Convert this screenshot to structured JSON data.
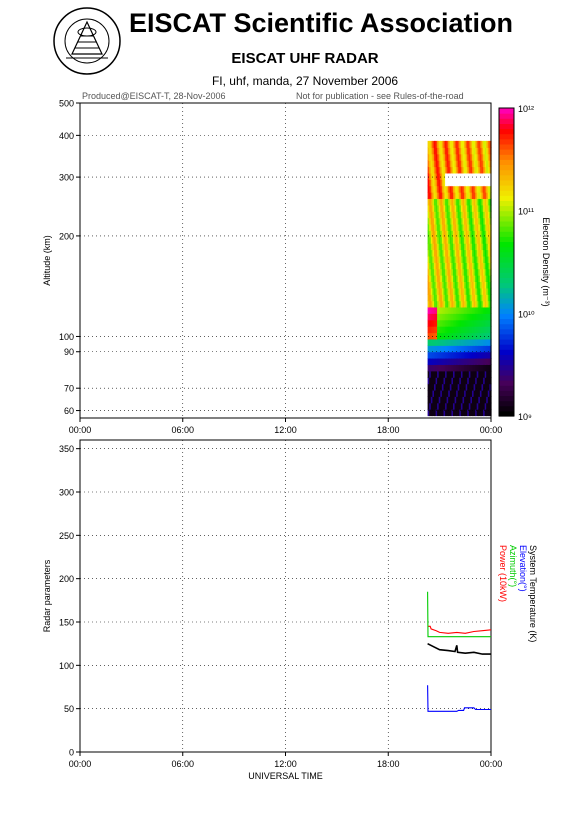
{
  "header": {
    "title": "EISCAT Scientific Association",
    "subtitle": "EISCAT UHF RADAR",
    "experiment_line": "FI, uhf, manda, 27 November 2006",
    "produced_note": "Produced@EISCAT-T, 28-Nov-2006",
    "publication_note": "Not for publication - see Rules-of-the-road"
  },
  "logo": {
    "text": "EISCAT SCIENTIFIC ASSOCIATION"
  },
  "colors": {
    "power": "#ff0000",
    "azimuth": "#00cc00",
    "elevation": "#0000ff",
    "system_temperature": "#000000"
  },
  "chart_data": [
    {
      "type": "heatmap",
      "ylabel": "Altitude (km)",
      "y_scale": "log",
      "ylim": [
        57,
        500
      ],
      "y_ticks": [
        "60",
        "70",
        "90",
        "100",
        "200",
        "300",
        "400",
        "500"
      ],
      "x_ticks": [
        "00:00",
        "06:00",
        "12:00",
        "18:00",
        "00:00"
      ],
      "grid": true,
      "colorbar": {
        "label": "Electron Density (m⁻³)",
        "scale": "log",
        "range": [
          1000000000.0,
          1000000000000.0
        ],
        "tick_labels": [
          "10¹²",
          "10¹¹",
          "10¹⁰",
          "10⁹"
        ]
      },
      "data_span_hours": [
        20.3,
        24.0
      ]
    },
    {
      "type": "line",
      "ylabel": "Radar parameters",
      "xlabel": "UNIVERSAL TIME",
      "ylim": [
        0,
        360
      ],
      "y_ticks": [
        "0",
        "50",
        "100",
        "150",
        "200",
        "250",
        "300",
        "350"
      ],
      "x_ticks": [
        "00:00",
        "06:00",
        "12:00",
        "18:00",
        "00:00"
      ],
      "grid": true,
      "legend": [
        "System Temperature (K)",
        "Elevation(°)",
        "Azimuth(°)",
        "Power (10kW)"
      ],
      "series": [
        {
          "name": "Power (10kW)",
          "color": "#ff0000",
          "points": [
            [
              20.3,
              145
            ],
            [
              20.45,
              145
            ],
            [
              20.5,
              142
            ],
            [
              20.8,
              140
            ],
            [
              21.0,
              138
            ],
            [
              21.5,
              137
            ],
            [
              22.0,
              138
            ],
            [
              22.5,
              137
            ],
            [
              23.0,
              139
            ],
            [
              23.5,
              140
            ],
            [
              24.0,
              141
            ]
          ]
        },
        {
          "name": "Azimuth(°)",
          "color": "#00cc00",
          "points": [
            [
              20.3,
              185
            ],
            [
              20.32,
              133
            ],
            [
              24.0,
              133
            ]
          ]
        },
        {
          "name": "Elevation(°)",
          "color": "#0000ff",
          "points": [
            [
              20.3,
              77
            ],
            [
              20.32,
              47
            ],
            [
              22.0,
              47
            ],
            [
              22.1,
              48
            ],
            [
              22.4,
              48
            ],
            [
              22.45,
              51
            ],
            [
              23.0,
              51
            ],
            [
              23.1,
              49
            ],
            [
              24.0,
              49
            ]
          ]
        },
        {
          "name": "System Temperature (K)",
          "color": "#000000",
          "points": [
            [
              20.3,
              125
            ],
            [
              20.6,
              122
            ],
            [
              21.0,
              118
            ],
            [
              21.5,
              117
            ],
            [
              21.9,
              116
            ],
            [
              22.0,
              123
            ],
            [
              22.05,
              115
            ],
            [
              22.5,
              114
            ],
            [
              23.0,
              115
            ],
            [
              23.5,
              113
            ],
            [
              24.0,
              113
            ]
          ]
        }
      ]
    }
  ]
}
